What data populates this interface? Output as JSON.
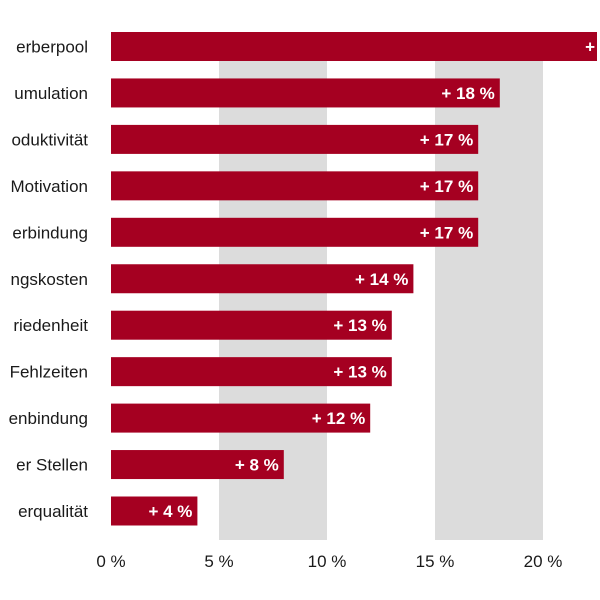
{
  "chart_data": {
    "type": "bar",
    "orientation": "horizontal",
    "categories": [
      "erberpool",
      "umulation",
      "oduktivität",
      "Motivation",
      "erbindung",
      "ngskosten",
      "riedenheit",
      "Fehlzeiten",
      "enbindung",
      "er Stellen",
      "erqualität"
    ],
    "values": [
      23,
      18,
      17,
      17,
      17,
      14,
      13,
      13,
      12,
      8,
      4
    ],
    "value_labels": [
      "+",
      "+ 18 %",
      "+ 17 %",
      "+ 17 %",
      "+ 17 %",
      "+ 14 %",
      "+ 13 %",
      "+ 13 %",
      "+ 12 %",
      "+ 8 %",
      "+ 4 %"
    ],
    "xticks": [
      "0 %",
      "5 %",
      "10 %",
      "15 %",
      "20 %"
    ],
    "xtick_values": [
      0,
      5,
      10,
      15,
      20
    ],
    "xlim": [
      0,
      22.5
    ],
    "alternating_bands": true,
    "colors": {
      "bar": "#a50021",
      "band": "#dcdcdc",
      "text": "#1a1a1a",
      "value_text": "#ffffff"
    }
  }
}
